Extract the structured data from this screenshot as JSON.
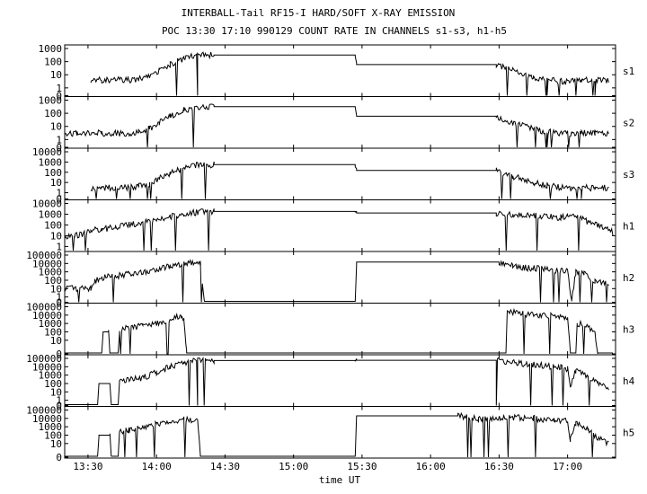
{
  "title": "INTERBALL-Tail RF15-I HARD/SOFT X-RAY EMISSION",
  "subtitle": "POC 13:30 17:10 990129  COUNT RATE IN CHANNELS s1-s3, h1-h5",
  "chart_data": {
    "type": "line",
    "title": "INTERBALL-Tail RF15-I HARD/SOFT X-RAY EMISSION",
    "subtitle": "POC 13:30 17:10 990129  COUNT RATE IN CHANNELS s1-s3, h1-h5",
    "xlabel": "time UT",
    "x_ticks": [
      "13:30",
      "14:00",
      "14:30",
      "15:00",
      "15:30",
      "16:00",
      "16:30",
      "17:00"
    ],
    "x_tick_hours": [
      13.5,
      14.0,
      14.5,
      15.0,
      15.5,
      16.0,
      16.5,
      17.0
    ],
    "xlim": [
      13.33,
      17.35
    ],
    "y_scale": "log",
    "grid": false,
    "panels": [
      {
        "name": "s1",
        "y_ticks": [
          "1000",
          "100",
          "10",
          "1",
          "0"
        ],
        "ylim": [
          0.3,
          1000
        ],
        "points": [
          [
            13.52,
            4
          ],
          [
            13.55,
            4
          ],
          [
            13.6,
            4
          ],
          [
            13.7,
            4
          ],
          [
            13.8,
            4
          ],
          [
            13.87,
            5
          ],
          [
            13.95,
            8
          ],
          [
            14.02,
            20
          ],
          [
            14.1,
            60
          ],
          [
            14.2,
            180
          ],
          [
            14.3,
            300
          ],
          [
            14.42,
            320
          ],
          [
            15.0,
            320
          ],
          [
            15.45,
            320
          ],
          [
            15.46,
            60
          ],
          [
            16.0,
            60
          ],
          [
            16.48,
            60
          ],
          [
            16.6,
            20
          ],
          [
            16.75,
            6
          ],
          [
            16.85,
            4
          ],
          [
            16.97,
            3
          ],
          [
            17.03,
            3
          ],
          [
            17.1,
            4
          ],
          [
            17.2,
            4
          ],
          [
            17.3,
            4
          ]
        ]
      },
      {
        "name": "s2",
        "y_ticks": [
          "1000",
          "100",
          "10",
          "1",
          "0"
        ],
        "ylim": [
          0.3,
          1000
        ],
        "points": [
          [
            13.33,
            3
          ],
          [
            13.42,
            3
          ],
          [
            13.52,
            3
          ],
          [
            13.6,
            3
          ],
          [
            13.7,
            3
          ],
          [
            13.8,
            3
          ],
          [
            13.87,
            4
          ],
          [
            13.95,
            7
          ],
          [
            14.02,
            18
          ],
          [
            14.1,
            60
          ],
          [
            14.2,
            180
          ],
          [
            14.3,
            300
          ],
          [
            14.42,
            320
          ],
          [
            15.0,
            320
          ],
          [
            15.45,
            320
          ],
          [
            15.46,
            60
          ],
          [
            16.0,
            60
          ],
          [
            16.48,
            60
          ],
          [
            16.6,
            20
          ],
          [
            16.75,
            6
          ],
          [
            16.85,
            4
          ],
          [
            16.97,
            3
          ],
          [
            17.03,
            3
          ],
          [
            17.1,
            3
          ],
          [
            17.2,
            3
          ],
          [
            17.3,
            3
          ]
        ]
      },
      {
        "name": "s3",
        "y_ticks": [
          "10000",
          "1000",
          "100",
          "10",
          "1",
          "0"
        ],
        "ylim": [
          0.3,
          10000
        ],
        "points": [
          [
            13.52,
            3
          ],
          [
            13.6,
            3
          ],
          [
            13.7,
            3
          ],
          [
            13.8,
            3
          ],
          [
            13.87,
            4
          ],
          [
            13.95,
            8
          ],
          [
            14.02,
            25
          ],
          [
            14.1,
            80
          ],
          [
            14.2,
            250
          ],
          [
            14.3,
            500
          ],
          [
            14.42,
            550
          ],
          [
            15.0,
            550
          ],
          [
            15.45,
            550
          ],
          [
            15.46,
            150
          ],
          [
            16.0,
            150
          ],
          [
            16.48,
            150
          ],
          [
            16.6,
            40
          ],
          [
            16.75,
            10
          ],
          [
            16.85,
            5
          ],
          [
            16.97,
            3
          ],
          [
            17.03,
            3
          ],
          [
            17.1,
            3
          ],
          [
            17.2,
            3
          ],
          [
            17.3,
            3
          ]
        ]
      },
      {
        "name": "h1",
        "y_ticks": [
          "10000",
          "1000",
          "100",
          "10",
          "1"
        ],
        "ylim": [
          0.5,
          10000
        ],
        "points": [
          [
            13.33,
            8
          ],
          [
            13.4,
            10
          ],
          [
            13.45,
            12
          ],
          [
            13.52,
            30
          ],
          [
            13.6,
            40
          ],
          [
            13.7,
            60
          ],
          [
            13.8,
            100
          ],
          [
            13.9,
            150
          ],
          [
            14.0,
            300
          ],
          [
            14.1,
            600
          ],
          [
            14.2,
            1000
          ],
          [
            14.3,
            1500
          ],
          [
            14.42,
            1800
          ],
          [
            15.0,
            1800
          ],
          [
            15.45,
            1800
          ],
          [
            15.46,
            1300
          ],
          [
            16.0,
            1300
          ],
          [
            16.48,
            1300
          ],
          [
            16.6,
            800
          ],
          [
            16.7,
            1000
          ],
          [
            16.8,
            700
          ],
          [
            16.95,
            500
          ],
          [
            17.0,
            700
          ],
          [
            17.05,
            600
          ],
          [
            17.15,
            200
          ],
          [
            17.25,
            60
          ],
          [
            17.33,
            20
          ]
        ]
      },
      {
        "name": "h2",
        "y_ticks": [
          "100000",
          "10000",
          "1000",
          "100",
          "10",
          "1",
          "0"
        ],
        "ylim": [
          0.3,
          100000
        ],
        "points": [
          [
            13.33,
            10
          ],
          [
            13.52,
            10
          ],
          [
            13.55,
            100
          ],
          [
            13.6,
            200
          ],
          [
            13.7,
            300
          ],
          [
            13.8,
            500
          ],
          [
            13.9,
            900
          ],
          [
            14.0,
            2000
          ],
          [
            14.1,
            5000
          ],
          [
            14.2,
            10000
          ],
          [
            14.27,
            15000
          ],
          [
            14.32,
            12000
          ],
          [
            14.35,
            0.3
          ],
          [
            15.45,
            0.3
          ],
          [
            15.46,
            15000
          ],
          [
            16.0,
            15000
          ],
          [
            16.5,
            15000
          ],
          [
            16.6,
            5000
          ],
          [
            16.7,
            3000
          ],
          [
            16.85,
            2000
          ],
          [
            17.0,
            1000
          ],
          [
            17.03,
            0.3
          ],
          [
            17.06,
            800
          ],
          [
            17.12,
            500
          ],
          [
            17.2,
            100
          ],
          [
            17.3,
            30
          ]
        ]
      },
      {
        "name": "h3",
        "y_ticks": [
          "100000",
          "10000",
          "1000",
          "100",
          "10",
          "0"
        ],
        "ylim": [
          0.3,
          100000
        ],
        "points": [
          [
            13.33,
            0.3
          ],
          [
            13.6,
            0.3
          ],
          [
            13.61,
            100
          ],
          [
            13.65,
            100
          ],
          [
            13.66,
            0.3
          ],
          [
            13.72,
            0.3
          ],
          [
            13.73,
            150
          ],
          [
            13.8,
            300
          ],
          [
            13.9,
            500
          ],
          [
            14.0,
            1000
          ],
          [
            14.1,
            3000
          ],
          [
            14.18,
            8000
          ],
          [
            14.2,
            2000
          ],
          [
            14.22,
            0.3
          ],
          [
            16.55,
            0.3
          ],
          [
            16.56,
            30000
          ],
          [
            16.65,
            15000
          ],
          [
            16.8,
            10000
          ],
          [
            16.97,
            6000
          ],
          [
            17.0,
            5000
          ],
          [
            17.02,
            0.3
          ],
          [
            17.06,
            0.3
          ],
          [
            17.07,
            1000
          ],
          [
            17.15,
            500
          ],
          [
            17.2,
            50
          ],
          [
            17.22,
            0.3
          ],
          [
            17.33,
            0.3
          ]
        ]
      },
      {
        "name": "h4",
        "y_ticks": [
          "100000",
          "10000",
          "1000",
          "100",
          "10",
          "1",
          "0"
        ],
        "ylim": [
          0.3,
          100000
        ],
        "points": [
          [
            13.33,
            0.3
          ],
          [
            13.57,
            0.3
          ],
          [
            13.58,
            100
          ],
          [
            13.66,
            100
          ],
          [
            13.67,
            0.3
          ],
          [
            13.72,
            0.3
          ],
          [
            13.73,
            200
          ],
          [
            13.8,
            300
          ],
          [
            13.9,
            500
          ],
          [
            14.0,
            2000
          ],
          [
            14.1,
            10000
          ],
          [
            14.2,
            30000
          ],
          [
            14.3,
            50000
          ],
          [
            14.42,
            55000
          ],
          [
            15.0,
            55000
          ],
          [
            15.45,
            55000
          ],
          [
            15.46,
            60000
          ],
          [
            16.0,
            60000
          ],
          [
            16.48,
            60000
          ],
          [
            16.6,
            30000
          ],
          [
            16.7,
            20000
          ],
          [
            16.8,
            15000
          ],
          [
            16.95,
            8000
          ],
          [
            17.0,
            5000
          ],
          [
            17.02,
            50
          ],
          [
            17.06,
            3000
          ],
          [
            17.15,
            800
          ],
          [
            17.22,
            100
          ],
          [
            17.3,
            20
          ]
        ]
      },
      {
        "name": "h5",
        "y_ticks": [
          "100000",
          "10000",
          "1000",
          "100",
          "10",
          "0"
        ],
        "ylim": [
          0.3,
          100000
        ],
        "points": [
          [
            13.33,
            0.3
          ],
          [
            13.57,
            0.3
          ],
          [
            13.58,
            100
          ],
          [
            13.66,
            100
          ],
          [
            13.67,
            0.3
          ],
          [
            13.72,
            0.3
          ],
          [
            13.73,
            200
          ],
          [
            13.8,
            400
          ],
          [
            13.9,
            800
          ],
          [
            14.0,
            2000
          ],
          [
            14.1,
            5000
          ],
          [
            14.2,
            8000
          ],
          [
            14.3,
            6000
          ],
          [
            14.32,
            0.3
          ],
          [
            15.45,
            0.3
          ],
          [
            15.46,
            20000
          ],
          [
            16.0,
            20000
          ],
          [
            16.2,
            20000
          ],
          [
            16.35,
            8000
          ],
          [
            16.55,
            15000
          ],
          [
            16.75,
            10000
          ],
          [
            16.9,
            6000
          ],
          [
            17.0,
            5000
          ],
          [
            17.02,
            20
          ],
          [
            17.06,
            3000
          ],
          [
            17.15,
            500
          ],
          [
            17.22,
            50
          ],
          [
            17.3,
            10
          ]
        ]
      }
    ]
  }
}
